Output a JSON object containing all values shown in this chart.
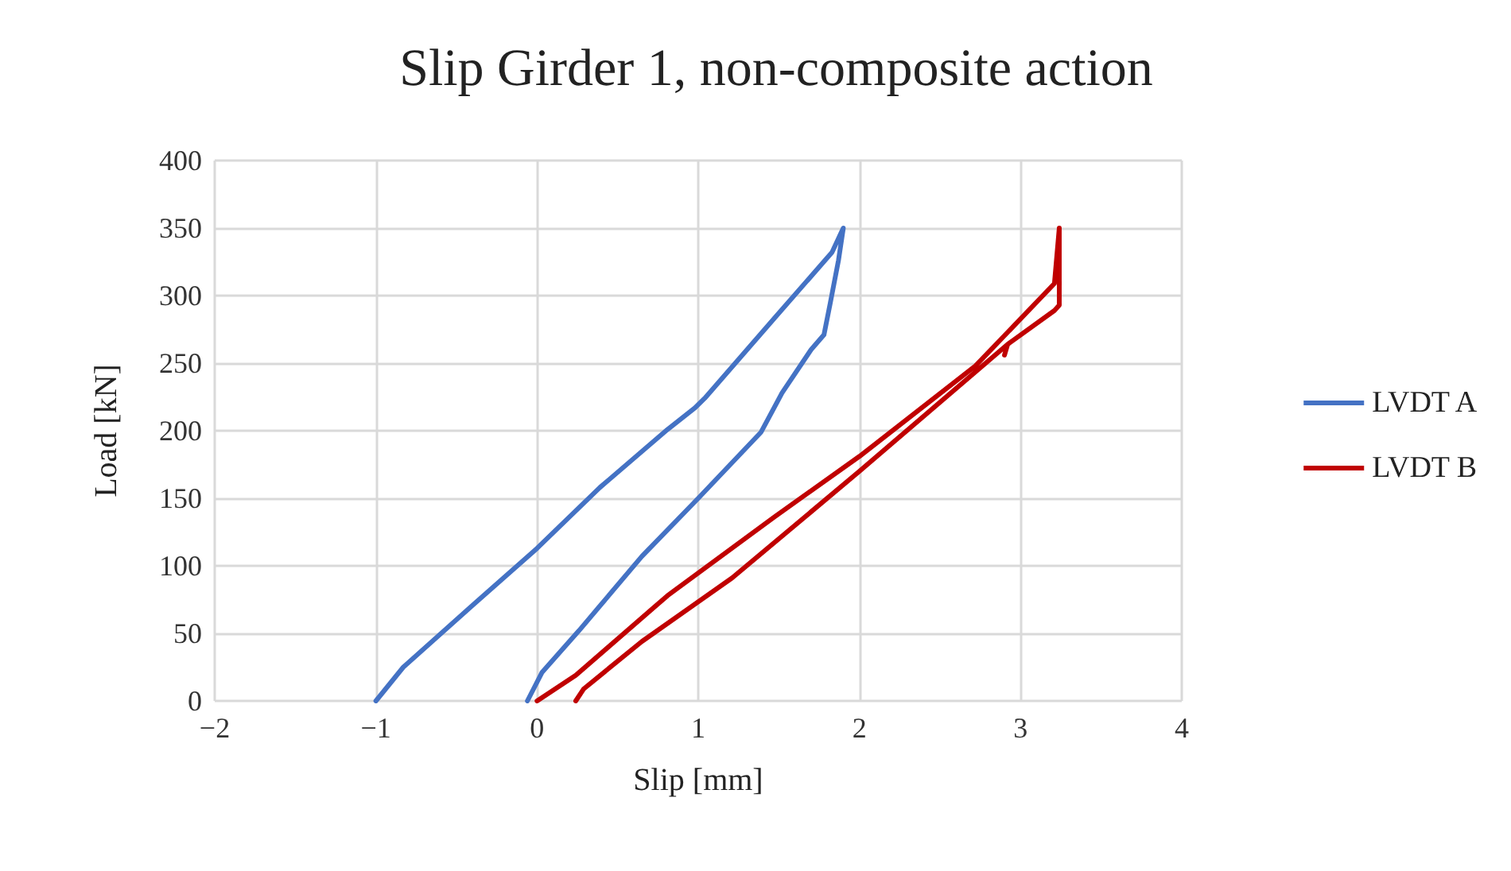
{
  "chart_data": {
    "type": "line",
    "title": "Slip Girder 1, non-composite action",
    "xlabel": "Slip [mm]",
    "ylabel": "Load [kN]",
    "xlim": [
      -2,
      4
    ],
    "xticks": [
      -2,
      -1,
      0,
      1,
      2,
      3,
      4
    ],
    "ylim": [
      0,
      400
    ],
    "yticks": [
      0,
      50,
      100,
      150,
      200,
      250,
      300,
      350,
      400
    ],
    "grid": true,
    "legend": "right",
    "marker": "none",
    "line_style": "solid",
    "series": [
      {
        "name": "LVDT A",
        "color": "#4472c4",
        "x": [
          -0.06,
          0.03,
          0.26,
          0.65,
          1.0,
          1.39,
          1.52,
          1.7,
          1.78,
          1.82,
          1.87,
          1.9,
          1.83,
          1.47,
          1.04,
          0.98,
          0.81,
          0.39,
          0,
          -0.37,
          -0.83,
          -1.0
        ],
        "values": [
          0,
          21,
          52,
          107,
          150,
          199,
          228,
          260,
          271,
          295,
          326,
          350,
          332,
          283,
          224,
          217,
          201,
          158,
          113,
          74,
          25,
          0
        ]
      },
      {
        "name": "LVDT B",
        "color": "#c00000",
        "x": [
          0,
          0.24,
          0.81,
          1.47,
          2.0,
          2.72,
          3.21,
          3.24,
          3.24,
          3.21,
          2.92,
          2.9,
          2.92,
          2.0,
          1.21,
          0.65,
          0.29,
          0.24
        ],
        "values": [
          0,
          19,
          78,
          136,
          181,
          248,
          309,
          350,
          293,
          289,
          264,
          256,
          264,
          170,
          91,
          44,
          9,
          0
        ]
      }
    ]
  }
}
